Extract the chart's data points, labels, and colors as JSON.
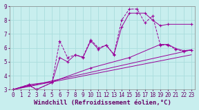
{
  "title": "",
  "xlabel": "Windchill (Refroidissement éolien,°C)",
  "xlim": [
    -0.5,
    23.5
  ],
  "ylim": [
    3,
    9
  ],
  "xticks": [
    0,
    1,
    2,
    3,
    4,
    5,
    6,
    7,
    8,
    9,
    10,
    11,
    12,
    13,
    14,
    15,
    16,
    17,
    18,
    19,
    20,
    21,
    22,
    23
  ],
  "yticks": [
    3,
    4,
    5,
    6,
    7,
    8,
    9
  ],
  "bg_color": "#c8eeee",
  "grid_color": "#aadddd",
  "line_color": "#990099",
  "lines": [
    {
      "x": [
        0,
        2,
        3,
        5,
        6,
        7,
        8,
        9,
        10,
        11,
        12,
        13,
        14,
        15,
        16,
        17,
        18,
        19,
        20,
        21,
        22,
        23
      ],
      "y": [
        3.0,
        3.35,
        3.0,
        3.5,
        6.5,
        5.3,
        5.5,
        5.35,
        6.6,
        6.0,
        6.2,
        5.55,
        8.0,
        8.8,
        8.8,
        7.8,
        8.3,
        6.2,
        6.2,
        5.9,
        5.75,
        5.85
      ],
      "linestyle": "--",
      "marker": "+"
    },
    {
      "x": [
        0,
        2,
        3,
        5,
        6,
        7,
        8,
        9,
        10,
        11,
        12,
        13,
        14,
        15,
        16,
        17,
        18,
        19,
        20,
        23
      ],
      "y": [
        3.0,
        3.3,
        3.0,
        3.5,
        5.3,
        5.0,
        5.5,
        5.3,
        6.5,
        5.9,
        6.2,
        5.5,
        7.5,
        8.5,
        8.5,
        8.5,
        8.0,
        7.6,
        7.7,
        7.7
      ],
      "linestyle": "-",
      "marker": "+"
    },
    {
      "x": [
        0,
        2,
        5,
        10,
        15,
        19,
        20,
        21,
        22,
        23
      ],
      "y": [
        3.0,
        3.35,
        3.55,
        4.55,
        5.3,
        6.25,
        6.25,
        5.95,
        5.8,
        5.85
      ],
      "linestyle": "-",
      "marker": "+"
    },
    {
      "x": [
        0,
        23
      ],
      "y": [
        3.0,
        5.5
      ],
      "linestyle": "-",
      "marker": null
    },
    {
      "x": [
        0,
        23
      ],
      "y": [
        3.0,
        5.85
      ],
      "linestyle": "-",
      "marker": null
    }
  ],
  "font_size": 6,
  "tick_font_size": 5.5,
  "xlabel_fontsize": 6.5
}
